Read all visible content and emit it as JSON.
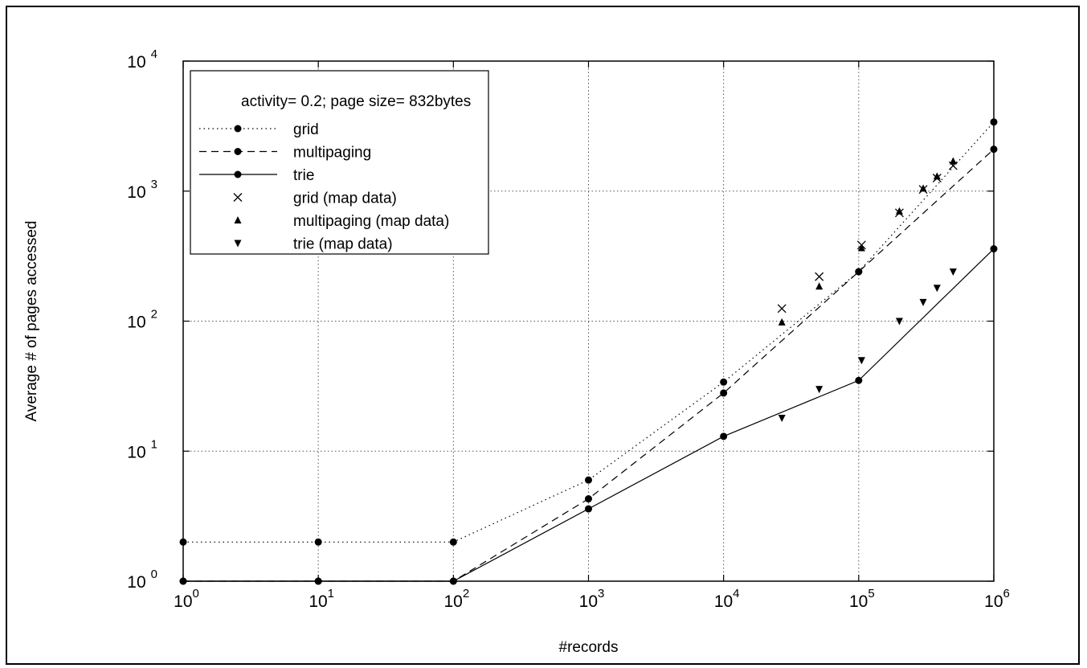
{
  "chart_data": {
    "type": "line",
    "xlabel": "#records",
    "ylabel": "Average # of pages accessed",
    "xscale": "log",
    "yscale": "log",
    "xlim": [
      1,
      1000000
    ],
    "ylim": [
      1,
      10000
    ],
    "grid": true,
    "legend_position": "top-left",
    "legend_title": "activity= 0.2; page size= 832bytes",
    "x_ticks": [
      {
        "base": "10",
        "exp": "0",
        "value": 1
      },
      {
        "base": "10",
        "exp": "1",
        "value": 10
      },
      {
        "base": "10",
        "exp": "2",
        "value": 100
      },
      {
        "base": "10",
        "exp": "3",
        "value": 1000
      },
      {
        "base": "10",
        "exp": "4",
        "value": 10000
      },
      {
        "base": "10",
        "exp": "5",
        "value": 100000
      },
      {
        "base": "10",
        "exp": "6",
        "value": 1000000
      }
    ],
    "y_ticks": [
      {
        "base": "10",
        "exp": "0",
        "value": 1
      },
      {
        "base": "10",
        "exp": "1",
        "value": 10
      },
      {
        "base": "10",
        "exp": "2",
        "value": 100
      },
      {
        "base": "10",
        "exp": "3",
        "value": 1000
      },
      {
        "base": "10",
        "exp": "4",
        "value": 10000
      }
    ],
    "series": [
      {
        "name": "grid",
        "style": "dotted",
        "marker": "circle",
        "points": [
          [
            1,
            2
          ],
          [
            10,
            2
          ],
          [
            100,
            2
          ],
          [
            1000,
            6
          ],
          [
            10000,
            34
          ],
          [
            100000,
            240
          ],
          [
            1000000,
            3400
          ]
        ]
      },
      {
        "name": "multipaging",
        "style": "dashed",
        "marker": "circle",
        "points": [
          [
            1,
            1
          ],
          [
            10,
            1
          ],
          [
            100,
            1
          ],
          [
            1000,
            4.3
          ],
          [
            10000,
            28
          ],
          [
            100000,
            240
          ],
          [
            1000000,
            2100
          ]
        ]
      },
      {
        "name": "trie",
        "style": "solid",
        "marker": "circle",
        "points": [
          [
            1,
            1
          ],
          [
            10,
            1
          ],
          [
            100,
            1
          ],
          [
            1000,
            3.6
          ],
          [
            10000,
            13
          ],
          [
            100000,
            35
          ],
          [
            1000000,
            360
          ]
        ]
      },
      {
        "name": "grid (map data)",
        "style": "none",
        "marker": "cross",
        "points": [
          [
            27000,
            125
          ],
          [
            51000,
            220
          ],
          [
            105000,
            385
          ],
          [
            200000,
            680
          ],
          [
            300000,
            1030
          ],
          [
            380000,
            1260
          ],
          [
            500000,
            1570
          ]
        ]
      },
      {
        "name": "multipaging (map data)",
        "style": "none",
        "marker": "triangle-up",
        "points": [
          [
            27000,
            98
          ],
          [
            51000,
            185
          ],
          [
            105000,
            365
          ],
          [
            200000,
            700
          ],
          [
            300000,
            1050
          ],
          [
            380000,
            1300
          ],
          [
            500000,
            1700
          ]
        ]
      },
      {
        "name": "trie (map data)",
        "style": "none",
        "marker": "triangle-down",
        "points": [
          [
            27000,
            18
          ],
          [
            51000,
            30
          ],
          [
            105000,
            50
          ],
          [
            200000,
            100
          ],
          [
            300000,
            140
          ],
          [
            380000,
            180
          ],
          [
            500000,
            240
          ]
        ]
      }
    ]
  }
}
